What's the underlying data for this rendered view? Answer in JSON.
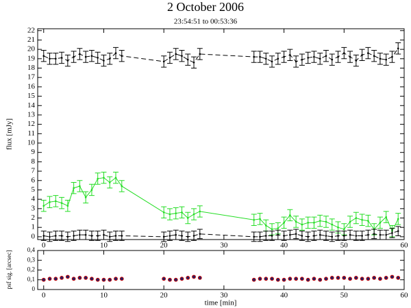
{
  "chart_data": [
    {
      "type": "line",
      "title": "2 October 2006",
      "subtitle": "23:54:51 to 00:53:36",
      "y_label": "flux [mJy]",
      "x": [
        0,
        1,
        2,
        3,
        4,
        5,
        6,
        7,
        8,
        9,
        10,
        11,
        12,
        13,
        20,
        21,
        22,
        23,
        24,
        25,
        26,
        35,
        36,
        37,
        38,
        39,
        40,
        41,
        42,
        43,
        44,
        45,
        46,
        47,
        48,
        49,
        50,
        51,
        52,
        53,
        54,
        55,
        56,
        57,
        58,
        59
      ],
      "xlim": [
        -1,
        60
      ],
      "xticks": [
        0,
        10,
        20,
        30,
        40,
        50,
        60
      ],
      "ylim": [
        -0.3,
        22.2
      ],
      "yticks": [
        0,
        1,
        2,
        3,
        4,
        5,
        6,
        7,
        8,
        9,
        10,
        11,
        12,
        13,
        14,
        15,
        16,
        17,
        18,
        19,
        20,
        21,
        22
      ],
      "series": [
        {
          "color": "#000000",
          "linestyle": "dashed",
          "error": 0.6,
          "values": [
            19.3,
            19.0,
            19.0,
            19.1,
            18.8,
            19.2,
            19.5,
            19.2,
            19.3,
            19.1,
            18.8,
            19.0,
            19.6,
            19.3,
            18.7,
            19.1,
            19.5,
            19.3,
            18.9,
            18.6,
            19.5,
            19.2,
            19.2,
            19.0,
            18.7,
            19.0,
            19.2,
            19.4,
            18.7,
            18.9,
            19.1,
            19.2,
            19.0,
            19.3,
            18.9,
            19.2,
            19.6,
            19.2,
            18.8,
            19.4,
            19.6,
            19.3,
            19.0,
            18.9,
            19.2,
            20.1
          ]
        },
        {
          "color": "#22dd22",
          "linestyle": "solid",
          "error": 0.6,
          "values": [
            3.3,
            3.7,
            3.8,
            3.6,
            3.3,
            5.2,
            5.4,
            4.2,
            5.0,
            6.2,
            6.3,
            5.8,
            6.3,
            5.4,
            2.6,
            2.4,
            2.5,
            2.6,
            2.0,
            2.4,
            2.7,
            1.8,
            1.9,
            1.2,
            0.8,
            0.9,
            1.5,
            2.3,
            1.6,
            1.3,
            1.5,
            1.5,
            1.7,
            1.6,
            1.3,
            1.0,
            0.8,
            1.6,
            2.0,
            1.8,
            1.7,
            0.8,
            1.5,
            2.1,
            0.6,
            1.9
          ]
        },
        {
          "color": "#000000",
          "linestyle": "dashed",
          "error": 0.5,
          "values": [
            0.1,
            0.0,
            0.1,
            0.1,
            0.0,
            0.1,
            0.2,
            0.2,
            0.1,
            0.1,
            0.2,
            0.0,
            0.1,
            0.1,
            0.0,
            0.1,
            0.2,
            0.1,
            0.0,
            0.1,
            0.3,
            0.0,
            0.0,
            0.1,
            0.1,
            0.2,
            0.1,
            0.2,
            0.3,
            0.1,
            0.0,
            0.1,
            0.2,
            0.1,
            0.0,
            0.1,
            0.1,
            0.2,
            0.1,
            0.1,
            0.2,
            0.3,
            0.2,
            0.2,
            0.4,
            0.6
          ]
        }
      ]
    },
    {
      "type": "scatter",
      "x_label": "time [min]",
      "y_label": "psf sig. [arcsec]",
      "x": [
        0,
        1,
        2,
        3,
        4,
        5,
        6,
        7,
        8,
        9,
        10,
        11,
        12,
        13,
        20,
        21,
        22,
        23,
        24,
        25,
        26,
        35,
        36,
        37,
        38,
        39,
        40,
        41,
        42,
        43,
        44,
        45,
        46,
        47,
        48,
        49,
        50,
        51,
        52,
        53,
        54,
        55,
        56,
        57,
        58,
        59
      ],
      "xlim": [
        -1,
        60
      ],
      "xticks": [
        0,
        10,
        20,
        30,
        40,
        50,
        60
      ],
      "ylim": [
        0,
        0.4
      ],
      "yticks": [
        0,
        {
          "value": 0.1,
          "label": "0,1"
        },
        {
          "value": 0.2,
          "label": "0,2"
        },
        {
          "value": 0.3,
          "label": "0,3"
        },
        {
          "value": 0.4,
          "label": "0,4"
        }
      ],
      "series": [
        {
          "color": "#cc0000",
          "values": [
            0.1,
            0.11,
            0.11,
            0.12,
            0.13,
            0.11,
            0.12,
            0.12,
            0.11,
            0.1,
            0.1,
            0.1,
            0.11,
            0.11,
            0.11,
            0.1,
            0.1,
            0.11,
            0.12,
            0.13,
            0.12,
            0.1,
            0.11,
            0.11,
            0.11,
            0.1,
            0.1,
            0.11,
            0.11,
            0.11,
            0.1,
            0.11,
            0.1,
            0.11,
            0.12,
            0.12,
            0.12,
            0.11,
            0.12,
            0.11,
            0.11,
            0.12,
            0.11,
            0.12,
            0.13,
            0.12
          ]
        }
      ]
    }
  ]
}
